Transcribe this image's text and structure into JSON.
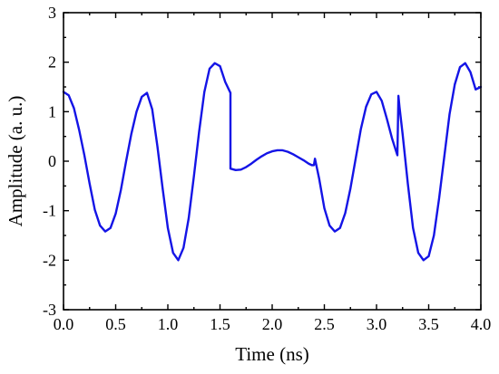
{
  "chart_data": {
    "type": "line",
    "title": "",
    "xlabel": "Time (ns)",
    "ylabel": "Amplitude (a. u.)",
    "xlim": [
      0,
      4
    ],
    "ylim": [
      -3,
      3
    ],
    "x_ticks": [
      0,
      0.5,
      1,
      1.5,
      2,
      2.5,
      3,
      3.5,
      4
    ],
    "x_tick_labels": [
      "0.0",
      "0.5",
      "1.0",
      "1.5",
      "2.0",
      "2.5",
      "3.0",
      "3.5",
      "4.0"
    ],
    "y_ticks": [
      -3,
      -2,
      -1,
      0,
      1,
      2,
      3
    ],
    "y_tick_labels": [
      "-3",
      "-2",
      "-1",
      "0",
      "1",
      "2",
      "3"
    ],
    "grid": false,
    "legend": "none",
    "series": [
      {
        "color": "#1414e6",
        "x": [
          0.0,
          0.05,
          0.1,
          0.15,
          0.2,
          0.25,
          0.3,
          0.35,
          0.4,
          0.45,
          0.5,
          0.55,
          0.6,
          0.65,
          0.7,
          0.75,
          0.8,
          0.85,
          0.9,
          0.95,
          1.0,
          1.05,
          1.1,
          1.15,
          1.2,
          1.25,
          1.3,
          1.35,
          1.4,
          1.45,
          1.5,
          1.55,
          1.6,
          1.6,
          1.65,
          1.7,
          1.75,
          1.8,
          1.85,
          1.9,
          1.95,
          2.0,
          2.05,
          2.1,
          2.15,
          2.2,
          2.25,
          2.3,
          2.35,
          2.38,
          2.4,
          2.41,
          2.42,
          2.45,
          2.5,
          2.55,
          2.6,
          2.65,
          2.7,
          2.75,
          2.8,
          2.85,
          2.9,
          2.95,
          3.0,
          3.05,
          3.1,
          3.15,
          3.2,
          3.21,
          3.22,
          3.25,
          3.3,
          3.35,
          3.4,
          3.45,
          3.5,
          3.55,
          3.6,
          3.65,
          3.7,
          3.75,
          3.8,
          3.85,
          3.9,
          3.95,
          4.0
        ],
        "y": [
          1.4,
          1.33,
          1.07,
          0.63,
          0.12,
          -0.45,
          -0.98,
          -1.3,
          -1.42,
          -1.35,
          -1.06,
          -0.58,
          0.0,
          0.55,
          1.0,
          1.3,
          1.38,
          1.05,
          0.3,
          -0.55,
          -1.35,
          -1.85,
          -2.0,
          -1.75,
          -1.15,
          -0.3,
          0.6,
          1.4,
          1.87,
          1.98,
          1.92,
          1.6,
          1.38,
          -0.15,
          -0.18,
          -0.17,
          -0.12,
          -0.05,
          0.03,
          0.1,
          0.16,
          0.2,
          0.22,
          0.22,
          0.19,
          0.14,
          0.08,
          0.02,
          -0.05,
          -0.08,
          -0.08,
          0.05,
          -0.05,
          -0.35,
          -0.95,
          -1.3,
          -1.42,
          -1.35,
          -1.05,
          -0.55,
          0.05,
          0.65,
          1.1,
          1.35,
          1.4,
          1.22,
          0.85,
          0.45,
          0.12,
          1.32,
          1.1,
          0.55,
          -0.45,
          -1.35,
          -1.85,
          -2.0,
          -1.92,
          -1.5,
          -0.75,
          0.1,
          0.95,
          1.55,
          1.9,
          1.98,
          1.8,
          1.45,
          1.5
        ]
      }
    ]
  }
}
